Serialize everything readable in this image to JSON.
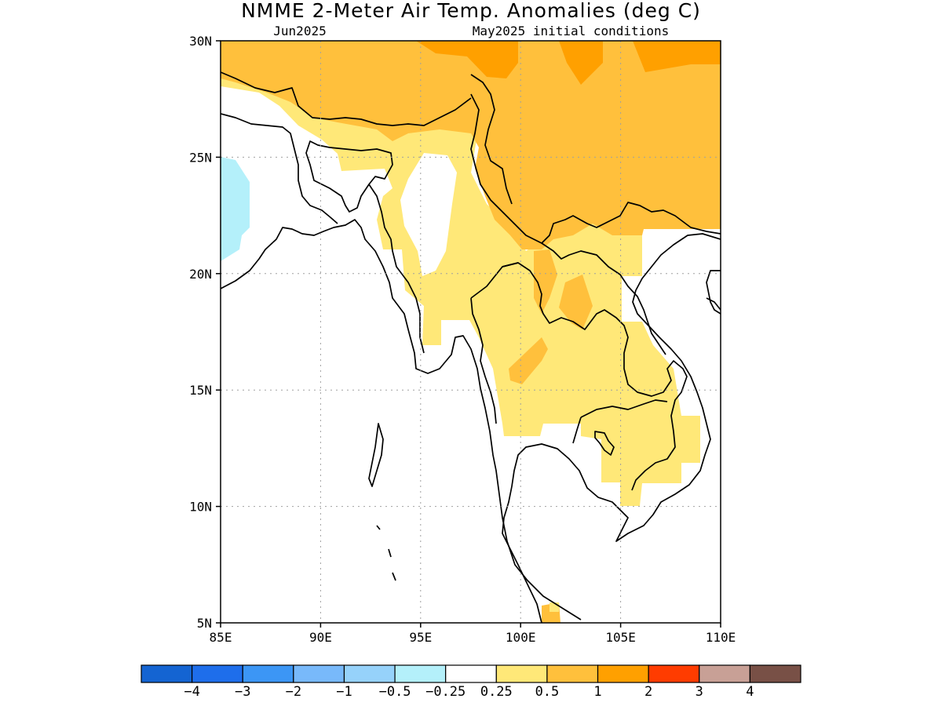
{
  "title": "NMME 2-Meter Air Temp. Anomalies (deg C)",
  "subtitle_left": "Jun2025",
  "subtitle_right": "May2025 initial conditions",
  "map": {
    "lon_range": [
      85,
      110
    ],
    "lat_range": [
      5,
      30
    ],
    "x_ticks": [
      {
        "value": 85,
        "label": "85E"
      },
      {
        "value": 90,
        "label": "90E"
      },
      {
        "value": 95,
        "label": "95E"
      },
      {
        "value": 100,
        "label": "100E"
      },
      {
        "value": 105,
        "label": "105E"
      },
      {
        "value": 110,
        "label": "110E"
      }
    ],
    "y_ticks": [
      {
        "value": 5,
        "label": "5N"
      },
      {
        "value": 10,
        "label": "10N"
      },
      {
        "value": 15,
        "label": "15N"
      },
      {
        "value": 20,
        "label": "20N"
      },
      {
        "value": 25,
        "label": "25N"
      },
      {
        "value": 30,
        "label": "30N"
      }
    ],
    "grid": "dotted"
  },
  "colorbar": {
    "colors": [
      "#1464d2",
      "#1e6eeb",
      "#3c96f5",
      "#78b9fa",
      "#96d2fa",
      "#b4f0fa",
      "#ffffff",
      "#ffe878",
      "#ffc03c",
      "#ffa000",
      "#ff3c00",
      "#c8a096",
      "#785046"
    ],
    "labels": [
      "-4",
      "-3",
      "-2",
      "-1",
      "-0.5",
      "-0.25",
      "0.25",
      "0.5",
      "1",
      "2",
      "3",
      "4"
    ]
  },
  "colors": {
    "light_yellow": "#ffe878",
    "light_orange": "#ffc03c",
    "orange": "#ffa000",
    "light_cyan": "#b4f0fa",
    "coast": "#000000"
  }
}
